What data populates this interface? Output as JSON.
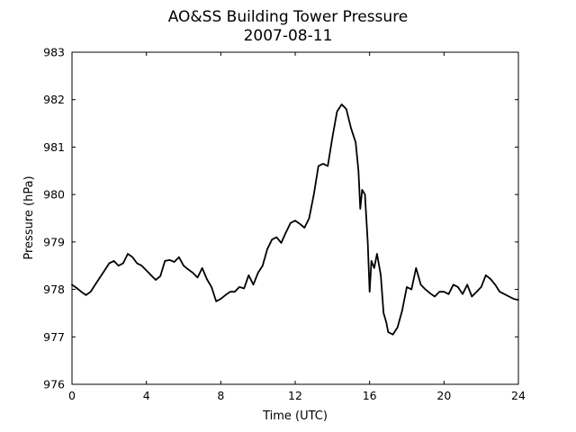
{
  "chart_data": {
    "type": "line",
    "title": "AO&SS Building Tower Pressure",
    "subtitle": "2007-08-11",
    "xlabel": "Time (UTC)",
    "ylabel": "Pressure (hPa)",
    "xlim": [
      0,
      24
    ],
    "ylim": [
      976,
      983
    ],
    "xticks": [
      0,
      4,
      8,
      12,
      16,
      20,
      24
    ],
    "yticks": [
      976,
      977,
      978,
      979,
      980,
      981,
      982,
      983
    ],
    "grid": false,
    "line_color": "#000000",
    "series": [
      {
        "x": [
          0,
          0.25,
          0.5,
          0.75,
          1.0,
          1.25,
          1.5,
          1.75,
          2.0,
          2.25,
          2.5,
          2.75,
          3.0,
          3.25,
          3.5,
          3.75,
          4.0,
          4.25,
          4.5,
          4.75,
          5.0,
          5.25,
          5.5,
          5.75,
          6.0,
          6.25,
          6.5,
          6.75,
          7.0,
          7.25,
          7.5,
          7.75,
          8.0,
          8.25,
          8.5,
          8.75,
          9.0,
          9.25,
          9.5,
          9.75,
          10.0,
          10.25,
          10.5,
          10.75,
          11.0,
          11.25,
          11.5,
          11.75,
          12.0,
          12.25,
          12.5,
          12.75,
          13.0,
          13.25,
          13.5,
          13.75,
          14.0,
          14.25,
          14.5,
          14.75,
          15.0,
          15.25,
          15.4,
          15.5,
          15.6,
          15.75,
          15.9,
          16.0,
          16.1,
          16.25,
          16.4,
          16.6,
          16.75,
          16.9,
          17.0,
          17.25,
          17.5,
          17.75,
          18.0,
          18.25,
          18.5,
          18.75,
          19.0,
          19.25,
          19.5,
          19.75,
          20.0,
          20.25,
          20.5,
          20.75,
          21.0,
          21.25,
          21.5,
          21.75,
          22.0,
          22.25,
          22.5,
          22.75,
          23.0,
          23.25,
          23.5,
          23.75,
          24.0
        ],
        "values": [
          978.1,
          978.03,
          977.95,
          977.88,
          977.95,
          978.1,
          978.25,
          978.4,
          978.55,
          978.6,
          978.5,
          978.55,
          978.75,
          978.68,
          978.55,
          978.5,
          978.4,
          978.3,
          978.2,
          978.28,
          978.6,
          978.62,
          978.58,
          978.68,
          978.5,
          978.42,
          978.35,
          978.25,
          978.45,
          978.22,
          978.05,
          977.75,
          977.8,
          977.88,
          977.95,
          977.95,
          978.05,
          978.02,
          978.3,
          978.1,
          978.35,
          978.5,
          978.85,
          979.05,
          979.1,
          978.98,
          979.2,
          979.4,
          979.45,
          979.38,
          979.3,
          979.5,
          980.0,
          980.6,
          980.65,
          980.6,
          981.2,
          981.75,
          981.9,
          981.8,
          981.4,
          981.1,
          980.5,
          979.7,
          980.1,
          980.0,
          979.0,
          977.95,
          978.6,
          978.45,
          978.75,
          978.3,
          977.5,
          977.3,
          977.1,
          977.05,
          977.2,
          977.55,
          978.05,
          978.0,
          978.45,
          978.1,
          978.0,
          977.92,
          977.85,
          977.95,
          977.95,
          977.9,
          978.1,
          978.05,
          977.9,
          978.1,
          977.85,
          977.95,
          978.05,
          978.3,
          978.22,
          978.1,
          977.95,
          977.9,
          977.85,
          977.8,
          977.78
        ]
      }
    ]
  }
}
